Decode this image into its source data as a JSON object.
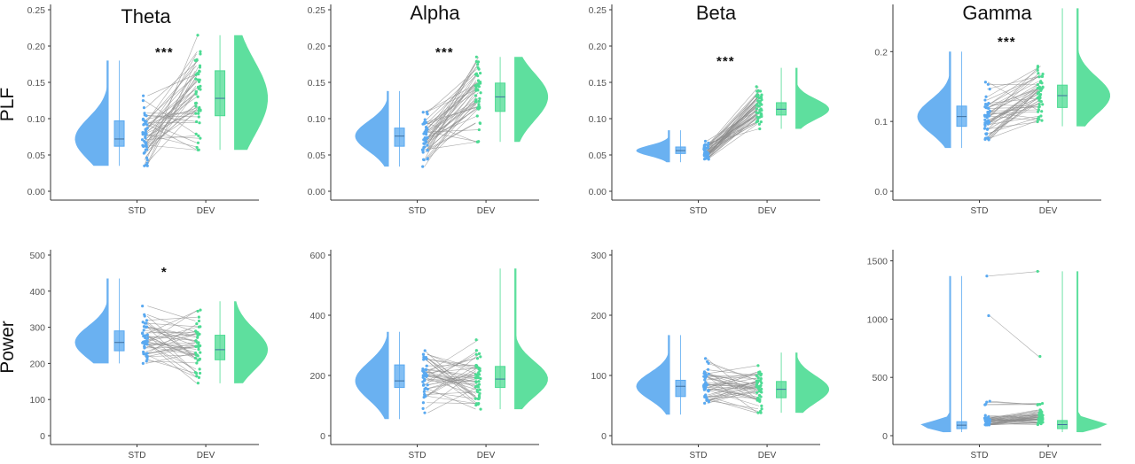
{
  "figure": {
    "row_labels": [
      "PLF",
      "Power"
    ],
    "band_titles": [
      "Theta",
      "Alpha",
      "Beta",
      "Gamma"
    ],
    "x_categories": [
      "STD",
      "DEV"
    ],
    "colors": {
      "STD": "#5aa9f0",
      "DEV": "#4ddb93",
      "pair_line": "#8c8c8c"
    }
  },
  "chart_data": [
    {
      "type": "raincloud",
      "row": "PLF",
      "band": "Theta",
      "title": "Theta",
      "ylabel": "PLF",
      "ylim": [
        0,
        0.25
      ],
      "yticks": [
        "0.00",
        "0.05",
        "0.10",
        "0.15",
        "0.20",
        "0.25"
      ],
      "significance": "***",
      "categories": [
        "STD",
        "DEV"
      ],
      "series": [
        {
          "name": "STD",
          "range": [
            0.035,
            0.18
          ],
          "box": {
            "q1": 0.062,
            "median": 0.072,
            "q3": 0.097
          }
        },
        {
          "name": "DEV",
          "range": [
            0.057,
            0.215
          ],
          "box": {
            "q1": 0.104,
            "median": 0.128,
            "q3": 0.166
          }
        }
      ]
    },
    {
      "type": "raincloud",
      "row": "PLF",
      "band": "Alpha",
      "title": "Alpha",
      "ylabel": "",
      "ylim": [
        0,
        0.25
      ],
      "yticks": [
        "0.00",
        "0.05",
        "0.10",
        "0.15",
        "0.20",
        "0.25"
      ],
      "significance": "***",
      "categories": [
        "STD",
        "DEV"
      ],
      "series": [
        {
          "name": "STD",
          "range": [
            0.034,
            0.138
          ],
          "box": {
            "q1": 0.062,
            "median": 0.076,
            "q3": 0.087
          }
        },
        {
          "name": "DEV",
          "range": [
            0.068,
            0.185
          ],
          "box": {
            "q1": 0.11,
            "median": 0.13,
            "q3": 0.149
          }
        }
      ]
    },
    {
      "type": "raincloud",
      "row": "PLF",
      "band": "Beta",
      "title": "Beta",
      "ylabel": "",
      "ylim": [
        0,
        0.25
      ],
      "yticks": [
        "0.00",
        "0.05",
        "0.10",
        "0.15",
        "0.20",
        "0.25"
      ],
      "significance": "***",
      "categories": [
        "STD",
        "DEV"
      ],
      "series": [
        {
          "name": "STD",
          "range": [
            0.04,
            0.084
          ],
          "box": {
            "q1": 0.052,
            "median": 0.056,
            "q3": 0.061
          }
        },
        {
          "name": "DEV",
          "range": [
            0.086,
            0.17
          ],
          "box": {
            "q1": 0.105,
            "median": 0.113,
            "q3": 0.122
          }
        }
      ]
    },
    {
      "type": "raincloud",
      "row": "PLF",
      "band": "Gamma",
      "title": "Gamma",
      "ylabel": "",
      "ylim": [
        0,
        0.26
      ],
      "yticks": [
        "0.0",
        "0.1",
        "0.2"
      ],
      "significance": "***",
      "categories": [
        "STD",
        "DEV"
      ],
      "series": [
        {
          "name": "STD",
          "range": [
            0.062,
            0.2
          ],
          "box": {
            "q1": 0.093,
            "median": 0.107,
            "q3": 0.122
          }
        },
        {
          "name": "DEV",
          "range": [
            0.093,
            0.262
          ],
          "box": {
            "q1": 0.12,
            "median": 0.137,
            "q3": 0.152
          }
        }
      ]
    },
    {
      "type": "raincloud",
      "row": "Power",
      "band": "Theta",
      "title": "",
      "ylabel": "Power",
      "ylim": [
        0,
        500
      ],
      "yticks": [
        "0",
        "100",
        "200",
        "300",
        "400",
        "500"
      ],
      "significance": "*",
      "categories": [
        "STD",
        "DEV"
      ],
      "series": [
        {
          "name": "STD",
          "range": [
            200,
            435
          ],
          "box": {
            "q1": 235,
            "median": 258,
            "q3": 290
          }
        },
        {
          "name": "DEV",
          "range": [
            145,
            372
          ],
          "box": {
            "q1": 210,
            "median": 238,
            "q3": 278
          }
        }
      ]
    },
    {
      "type": "raincloud",
      "row": "Power",
      "band": "Alpha",
      "title": "",
      "ylabel": "",
      "ylim": [
        0,
        600
      ],
      "yticks": [
        "0",
        "200",
        "400",
        "600"
      ],
      "significance": "",
      "categories": [
        "STD",
        "DEV"
      ],
      "series": [
        {
          "name": "STD",
          "range": [
            55,
            345
          ],
          "box": {
            "q1": 160,
            "median": 182,
            "q3": 235
          }
        },
        {
          "name": "DEV",
          "range": [
            88,
            555
          ],
          "box": {
            "q1": 160,
            "median": 188,
            "q3": 230
          }
        }
      ]
    },
    {
      "type": "raincloud",
      "row": "Power",
      "band": "Beta",
      "title": "",
      "ylabel": "",
      "ylim": [
        0,
        300
      ],
      "yticks": [
        "0",
        "100",
        "200",
        "300"
      ],
      "significance": "",
      "categories": [
        "STD",
        "DEV"
      ],
      "series": [
        {
          "name": "STD",
          "range": [
            35,
            167
          ],
          "box": {
            "q1": 65,
            "median": 82,
            "q3": 92
          }
        },
        {
          "name": "DEV",
          "range": [
            38,
            138
          ],
          "box": {
            "q1": 63,
            "median": 77,
            "q3": 90
          }
        }
      ]
    },
    {
      "type": "raincloud",
      "row": "Power",
      "band": "Gamma",
      "title": "",
      "ylabel": "",
      "ylim": [
        0,
        1550
      ],
      "yticks": [
        "0",
        "500",
        "1000",
        "1500"
      ],
      "significance": "",
      "categories": [
        "STD",
        "DEV"
      ],
      "series": [
        {
          "name": "STD",
          "range": [
            30,
            1370
          ],
          "box": {
            "q1": 60,
            "median": 90,
            "q3": 120
          }
        },
        {
          "name": "DEV",
          "range": [
            30,
            1410
          ],
          "box": {
            "q1": 60,
            "median": 95,
            "q3": 130
          }
        }
      ]
    }
  ]
}
